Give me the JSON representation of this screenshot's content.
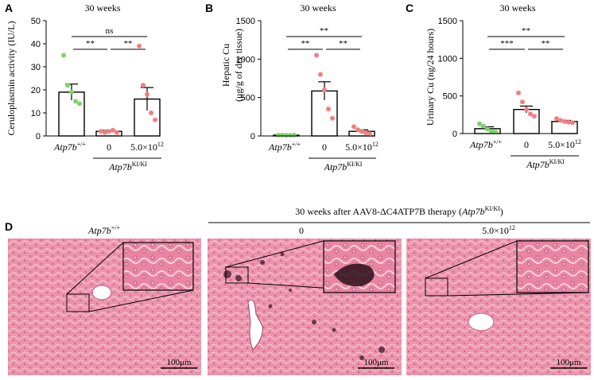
{
  "chart_data": [
    {
      "panel": "A",
      "type": "bar",
      "title": "30 weeks",
      "ylabel": "Ceruloplasmin activity (IU/L)",
      "ylim": [
        0,
        50
      ],
      "yticks": [
        0,
        10,
        20,
        30,
        40,
        50
      ],
      "categories": [
        "Atp7b+/+",
        "0",
        "5.0×10¹²"
      ],
      "group_label": "Atp7bKI/KI",
      "values": [
        19,
        2,
        16
      ],
      "errors": [
        3.5,
        0.4,
        5
      ],
      "points": [
        [
          35,
          22,
          19,
          15,
          14
        ],
        [
          2,
          1.5,
          2,
          2.5,
          1.5
        ],
        [
          39,
          22,
          18,
          10,
          7
        ]
      ],
      "point_colors": [
        "#7ed36b",
        "#f08080",
        "#f08080"
      ],
      "comparisons": [
        {
          "from": 0,
          "to": 1,
          "label": "**",
          "level": 1
        },
        {
          "from": 1,
          "to": 2,
          "label": "**",
          "level": 1
        },
        {
          "from": 0,
          "to": 2,
          "label": "ns",
          "level": 2
        }
      ]
    },
    {
      "panel": "B",
      "type": "bar",
      "title": "30 weeks",
      "ylabel": "Hepatic Cu (μg/g of dry tissue)",
      "ylim": [
        0,
        1500
      ],
      "yticks": [
        0,
        500,
        1000,
        1500
      ],
      "categories": [
        "Atp7b+/+",
        "0",
        "5.0×10¹²"
      ],
      "group_label": "Atp7bKI/KI",
      "values": [
        10,
        585,
        60
      ],
      "errors": [
        3,
        120,
        20
      ],
      "points": [
        [
          10,
          12,
          8,
          9,
          11
        ],
        [
          1050,
          800,
          600,
          350,
          230
        ],
        [
          120,
          80,
          60,
          40,
          30
        ]
      ],
      "point_colors": [
        "#7ed36b",
        "#f08080",
        "#f08080"
      ],
      "comparisons": [
        {
          "from": 0,
          "to": 1,
          "label": "**",
          "level": 1
        },
        {
          "from": 1,
          "to": 2,
          "label": "**",
          "level": 1
        },
        {
          "from": 0,
          "to": 2,
          "label": "**",
          "level": 2
        }
      ]
    },
    {
      "panel": "C",
      "type": "bar",
      "title": "30 weeks",
      "ylabel": "Urinary Cu (ng/24 hours)",
      "ylim": [
        0,
        1500
      ],
      "yticks": [
        0,
        500,
        1000,
        1500
      ],
      "categories": [
        "Atp7b+/+",
        "0",
        "5.0×10¹²"
      ],
      "group_label": "Atp7bKI/KI",
      "values": [
        65,
        320,
        160
      ],
      "errors": [
        25,
        45,
        15
      ],
      "points": [
        [
          130,
          100,
          60,
          30,
          20
        ],
        [
          540,
          420,
          320,
          260,
          230
        ],
        [
          200,
          175,
          160,
          150,
          145
        ]
      ],
      "point_colors": [
        "#7ed36b",
        "#f08080",
        "#f08080"
      ],
      "comparisons": [
        {
          "from": 0,
          "to": 1,
          "label": "***",
          "level": 1
        },
        {
          "from": 1,
          "to": 2,
          "label": "**",
          "level": 1
        },
        {
          "from": 0,
          "to": 2,
          "label": "**",
          "level": 2
        }
      ]
    }
  ],
  "histology": {
    "panel_letter": "D",
    "header": "30 weeks after AAV8-ΔC4ATP7B therapy (Atp7bKI/KI)",
    "images": [
      {
        "label": "Atp7b+/+",
        "scale_bar": "100μm",
        "stained": false
      },
      {
        "label": "0",
        "scale_bar": "100μm",
        "stained": true
      },
      {
        "label": "5.0×10¹²",
        "scale_bar": "100μm",
        "stained": false
      }
    ],
    "tissue_color": "#e88aa3"
  },
  "text": {
    "a_letter": "A",
    "b_letter": "B",
    "c_letter": "C",
    "cat0_base": "Atp7b",
    "cat0_sup": "+/+",
    "cat1": "0",
    "cat2_base": "5.0×10",
    "cat2_sup": "12",
    "grp_base": "Atp7b",
    "grp_sup": "KI/KI",
    "b_ylabel_1": "Hepatic Cu",
    "b_ylabel_2": "(μg/g of dry tissue)",
    "d_header_pre": "30 weeks after AAV8-ΔC4ATP7B therapy (",
    "d_header_base": "Atp7b",
    "d_header_sup": "KI/KI",
    "d_header_post": ")"
  }
}
